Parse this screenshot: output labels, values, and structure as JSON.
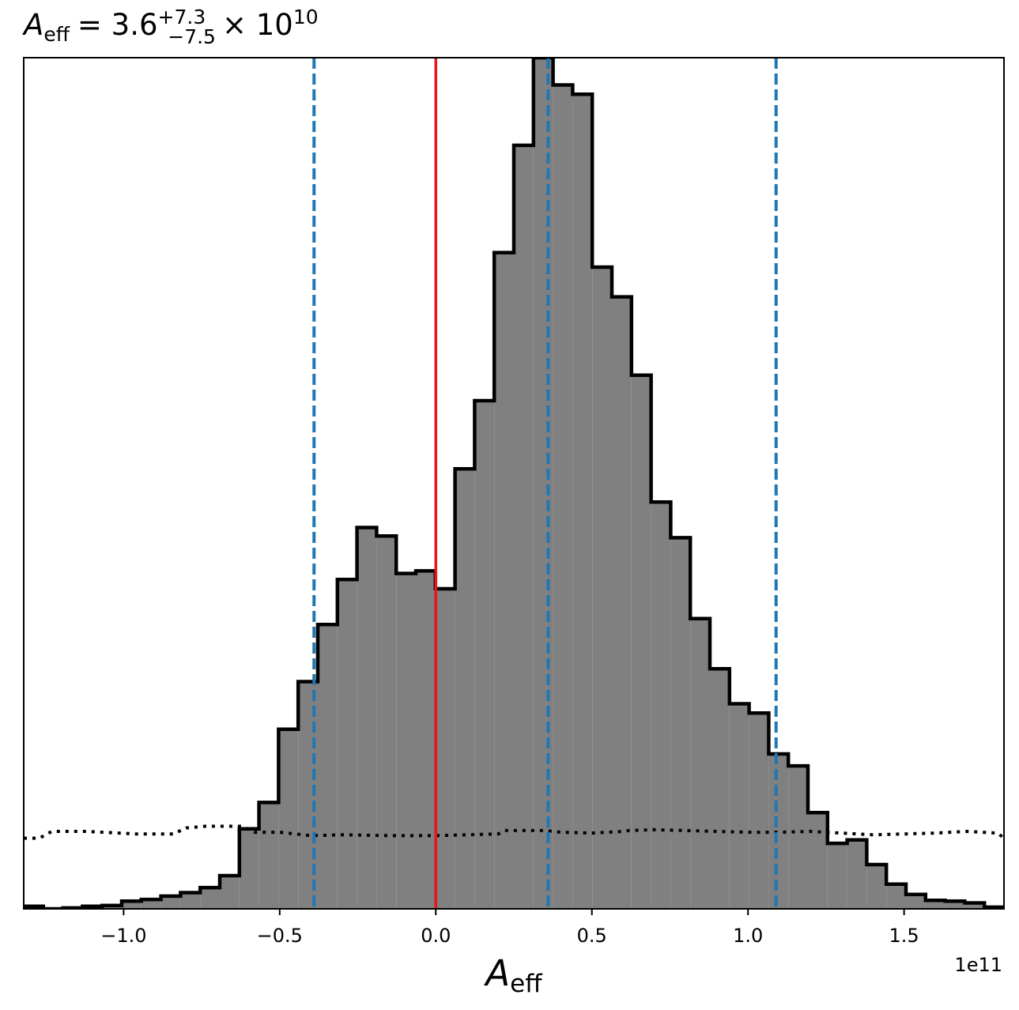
{
  "chart_data": {
    "type": "histogram",
    "title": {
      "symbol": "A",
      "subscript": "eff",
      "equals_value": "= 3.6",
      "upper_err": "+7.3",
      "lower_err": "−7.5",
      "times": "× 10",
      "exponent": "10"
    },
    "xlabel": {
      "symbol": "A",
      "subscript": "eff"
    },
    "x_offset_text": "1e11",
    "xlim": [
      -1.32,
      1.82
    ],
    "ylim": [
      0,
      1.0
    ],
    "bin_start": -1.32,
    "bin_width": 0.0628,
    "histogram_counts": [
      0.003,
      0.0,
      0.001,
      0.003,
      0.004,
      0.009,
      0.011,
      0.015,
      0.019,
      0.025,
      0.039,
      0.094,
      0.125,
      0.211,
      0.267,
      0.334,
      0.387,
      0.448,
      0.438,
      0.394,
      0.397,
      0.376,
      0.517,
      0.597,
      0.771,
      0.897,
      1.0,
      0.968,
      0.957,
      0.754,
      0.719,
      0.627,
      0.478,
      0.436,
      0.341,
      0.282,
      0.241,
      0.23,
      0.182,
      0.168,
      0.113,
      0.077,
      0.081,
      0.052,
      0.029,
      0.017,
      0.01,
      0.009,
      0.007,
      0.002
    ],
    "prior_x": [
      -1.32,
      -1.27,
      -1.23,
      -1.12,
      -0.96,
      -0.84,
      -0.8,
      -0.74,
      -0.62,
      -0.58,
      -0.5,
      -0.4,
      -0.3,
      -0.15,
      0.0,
      0.2,
      0.22,
      0.35,
      0.4,
      0.5,
      0.6,
      0.62,
      0.7,
      0.8,
      0.9,
      1.0,
      1.1,
      1.2,
      1.3,
      1.4,
      1.6,
      1.7,
      1.8,
      1.82
    ],
    "prior_y": [
      0.083,
      0.083,
      0.091,
      0.091,
      0.088,
      0.088,
      0.095,
      0.097,
      0.097,
      0.09,
      0.09,
      0.086,
      0.087,
      0.086,
      0.086,
      0.088,
      0.092,
      0.092,
      0.09,
      0.089,
      0.091,
      0.092,
      0.093,
      0.092,
      0.091,
      0.09,
      0.09,
      0.091,
      0.089,
      0.087,
      0.089,
      0.091,
      0.089,
      0.083
    ],
    "injected_value": 0.0,
    "quantiles": [
      -0.39,
      0.36,
      1.09
    ],
    "xticks": [
      -1.0,
      -0.5,
      0.0,
      0.5,
      1.0,
      1.5
    ],
    "xtick_labels": [
      "−1.0",
      "−0.5",
      "0.0",
      "0.5",
      "1.0",
      "1.5"
    ],
    "colors": {
      "hist_fill": "#808080",
      "hist_edge": "#000000",
      "injection_line": "#e8141b",
      "quantile_line": "#1f77b4",
      "prior_line": "#000000"
    },
    "grid": false,
    "legend": "none"
  }
}
